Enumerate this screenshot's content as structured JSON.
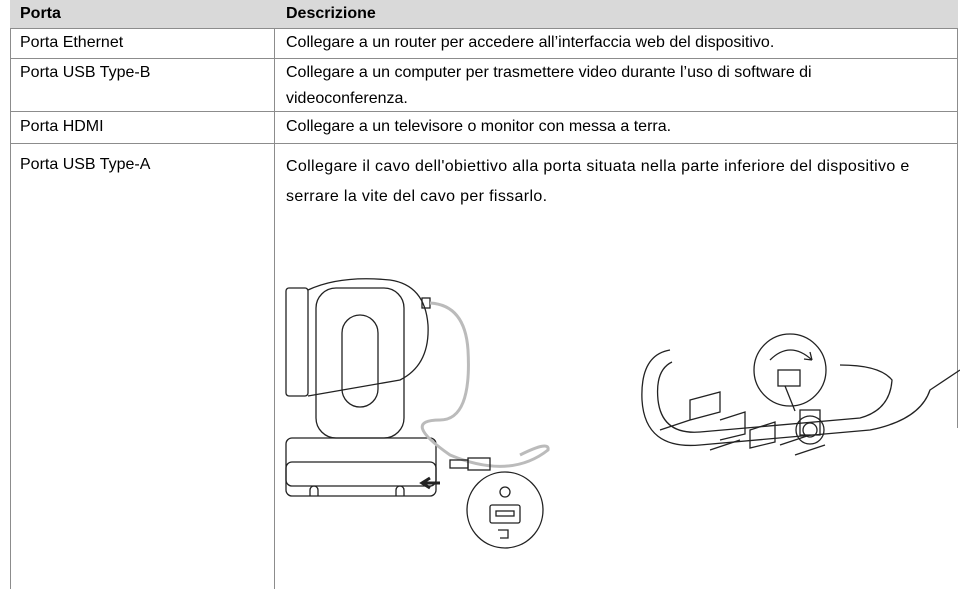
{
  "table": {
    "header": [
      "Porta",
      "Descrizione"
    ],
    "rows": [
      [
        "Porta Ethernet",
        "Collegare a un router per accedere all’interfaccia web del dispositivo."
      ],
      [
        "Porta USB Type-B",
        "Collegare a un computer per trasmettere video durante l’uso di software di videoconferenza."
      ],
      [
        "Porta HDMI",
        "Collegare a un televisore o monitor con messa a terra."
      ],
      [
        "Porta USB Type-A",
        "Collegare il cavo dell'obiettivo alla porta situata nella parte inferiore del dispositivo e serrare la vite del cavo per fissarlo."
      ]
    ]
  }
}
